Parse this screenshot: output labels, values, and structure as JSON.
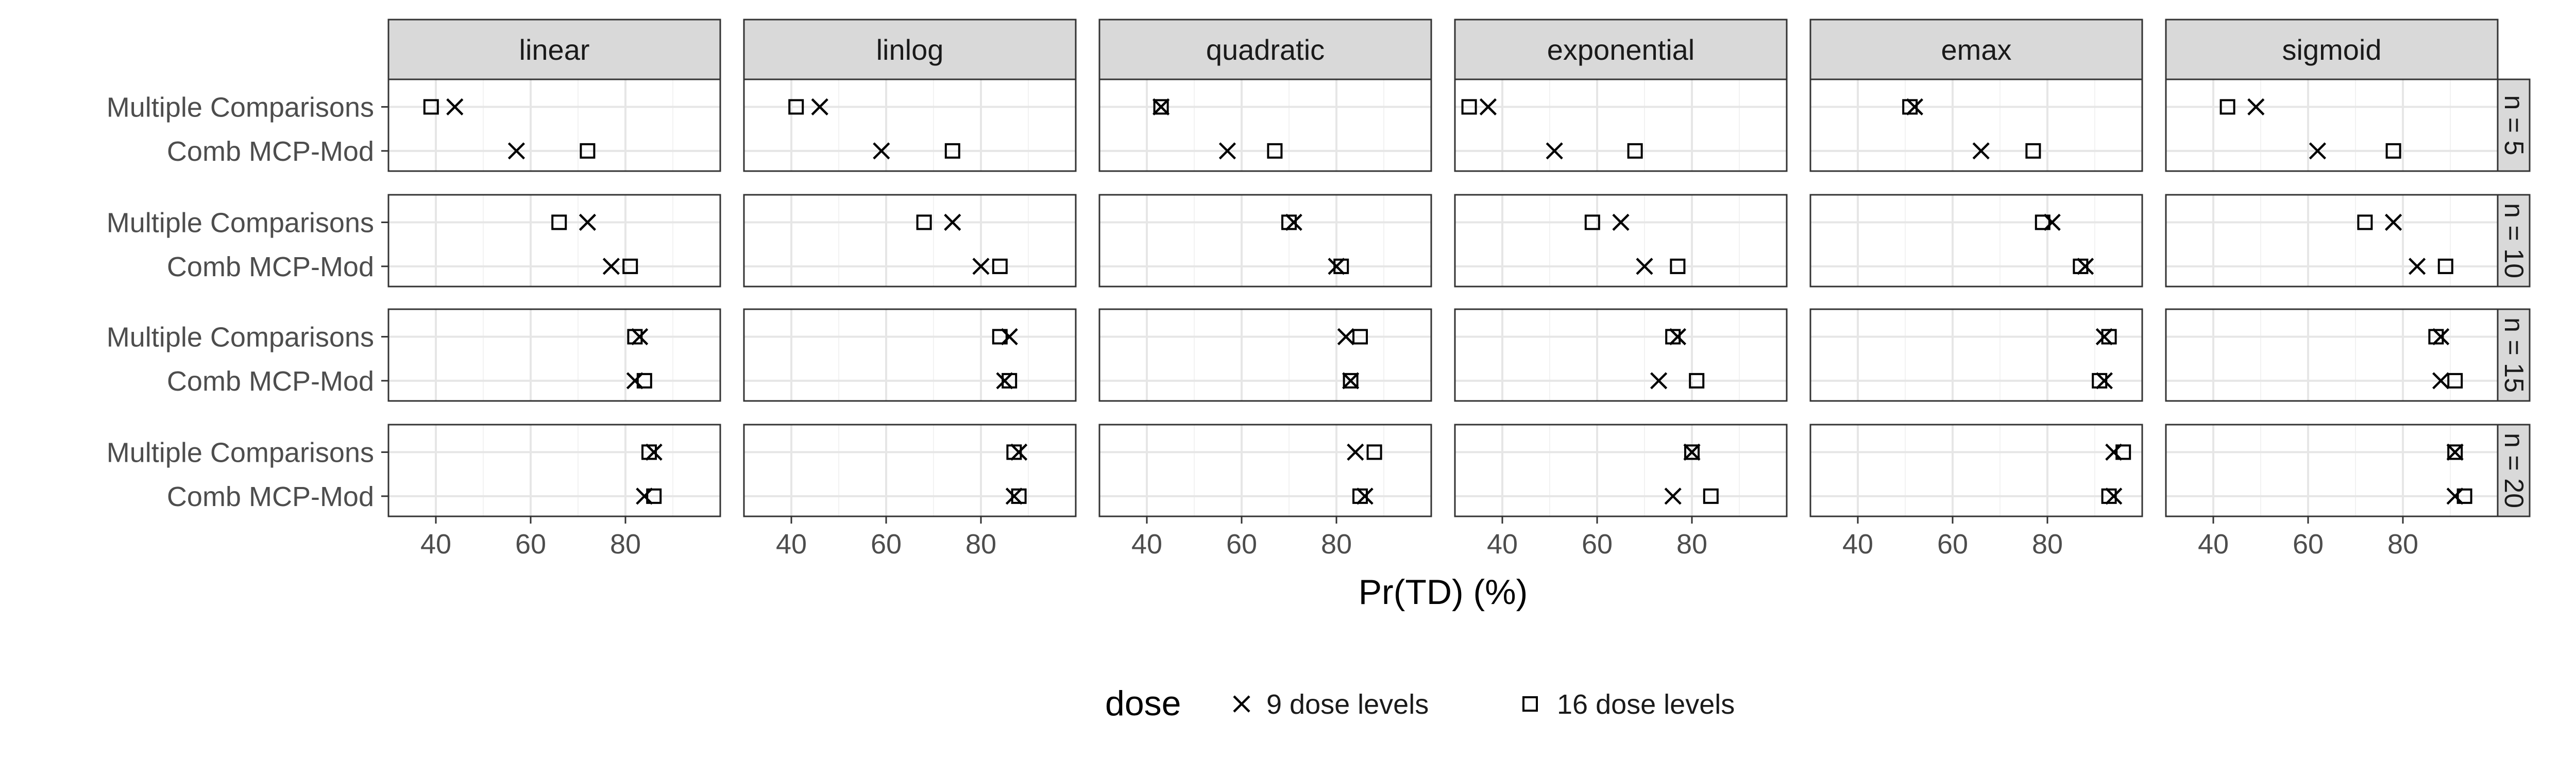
{
  "chart_data": {
    "type": "scatter",
    "xlabel": "Pr(TD) (%)",
    "ylabel": "",
    "xlim": [
      30,
      100
    ],
    "x_ticks": [
      "40",
      "60",
      "80"
    ],
    "x_tick_values": [
      40,
      60,
      80
    ],
    "grid": true,
    "legend_position": "bottom",
    "legend": {
      "title": "dose",
      "entries": [
        {
          "name": "9 dose levels",
          "shape": "cross"
        },
        {
          "name": "16 dose levels",
          "shape": "open-square"
        }
      ]
    },
    "facet_columns": [
      "linear",
      "linlog",
      "quadratic",
      "exponential",
      "emax",
      "sigmoid"
    ],
    "facet_rows": [
      "n = 5",
      "n = 10",
      "n = 15",
      "n = 20"
    ],
    "categories": [
      "Multiple Comparisons",
      "Comb MCP-Mod"
    ],
    "series": [
      {
        "name": "9 dose levels",
        "values": {
          "n = 5": {
            "linear": {
              "Multiple Comparisons": 44,
              "Comb MCP-Mod": 57
            },
            "linlog": {
              "Multiple Comparisons": 46,
              "Comb MCP-Mod": 59
            },
            "quadratic": {
              "Multiple Comparisons": 43,
              "Comb MCP-Mod": 57
            },
            "exponential": {
              "Multiple Comparisons": 37,
              "Comb MCP-Mod": 51
            },
            "emax": {
              "Multiple Comparisons": 52,
              "Comb MCP-Mod": 66
            },
            "sigmoid": {
              "Multiple Comparisons": 49,
              "Comb MCP-Mod": 62
            }
          },
          "n = 10": {
            "linear": {
              "Multiple Comparisons": 72,
              "Comb MCP-Mod": 77
            },
            "linlog": {
              "Multiple Comparisons": 74,
              "Comb MCP-Mod": 80
            },
            "quadratic": {
              "Multiple Comparisons": 71,
              "Comb MCP-Mod": 80
            },
            "exponential": {
              "Multiple Comparisons": 65,
              "Comb MCP-Mod": 70
            },
            "emax": {
              "Multiple Comparisons": 81,
              "Comb MCP-Mod": 88
            },
            "sigmoid": {
              "Multiple Comparisons": 78,
              "Comb MCP-Mod": 83
            }
          },
          "n = 15": {
            "linear": {
              "Multiple Comparisons": 83,
              "Comb MCP-Mod": 82
            },
            "linlog": {
              "Multiple Comparisons": 86,
              "Comb MCP-Mod": 85
            },
            "quadratic": {
              "Multiple Comparisons": 82,
              "Comb MCP-Mod": 83
            },
            "exponential": {
              "Multiple Comparisons": 77,
              "Comb MCP-Mod": 73
            },
            "emax": {
              "Multiple Comparisons": 92,
              "Comb MCP-Mod": 92
            },
            "sigmoid": {
              "Multiple Comparisons": 88,
              "Comb MCP-Mod": 88
            }
          },
          "n = 20": {
            "linear": {
              "Multiple Comparisons": 86,
              "Comb MCP-Mod": 84
            },
            "linlog": {
              "Multiple Comparisons": 88,
              "Comb MCP-Mod": 87
            },
            "quadratic": {
              "Multiple Comparisons": 84,
              "Comb MCP-Mod": 86
            },
            "exponential": {
              "Multiple Comparisons": 80,
              "Comb MCP-Mod": 76
            },
            "emax": {
              "Multiple Comparisons": 94,
              "Comb MCP-Mod": 94
            },
            "sigmoid": {
              "Multiple Comparisons": 91,
              "Comb MCP-Mod": 91
            }
          }
        }
      },
      {
        "name": "16 dose levels",
        "values": {
          "n = 5": {
            "linear": {
              "Multiple Comparisons": 39,
              "Comb MCP-Mod": 72
            },
            "linlog": {
              "Multiple Comparisons": 41,
              "Comb MCP-Mod": 74
            },
            "quadratic": {
              "Multiple Comparisons": 43,
              "Comb MCP-Mod": 67
            },
            "exponential": {
              "Multiple Comparisons": 33,
              "Comb MCP-Mod": 68
            },
            "emax": {
              "Multiple Comparisons": 51,
              "Comb MCP-Mod": 77
            },
            "sigmoid": {
              "Multiple Comparisons": 43,
              "Comb MCP-Mod": 78
            }
          },
          "n = 10": {
            "linear": {
              "Multiple Comparisons": 66,
              "Comb MCP-Mod": 81
            },
            "linlog": {
              "Multiple Comparisons": 68,
              "Comb MCP-Mod": 84
            },
            "quadratic": {
              "Multiple Comparisons": 70,
              "Comb MCP-Mod": 81
            },
            "exponential": {
              "Multiple Comparisons": 59,
              "Comb MCP-Mod": 77
            },
            "emax": {
              "Multiple Comparisons": 79,
              "Comb MCP-Mod": 87
            },
            "sigmoid": {
              "Multiple Comparisons": 72,
              "Comb MCP-Mod": 89
            }
          },
          "n = 15": {
            "linear": {
              "Multiple Comparisons": 82,
              "Comb MCP-Mod": 84
            },
            "linlog": {
              "Multiple Comparisons": 84,
              "Comb MCP-Mod": 86
            },
            "quadratic": {
              "Multiple Comparisons": 85,
              "Comb MCP-Mod": 83
            },
            "exponential": {
              "Multiple Comparisons": 76,
              "Comb MCP-Mod": 81
            },
            "emax": {
              "Multiple Comparisons": 93,
              "Comb MCP-Mod": 91
            },
            "sigmoid": {
              "Multiple Comparisons": 87,
              "Comb MCP-Mod": 91
            }
          },
          "n = 20": {
            "linear": {
              "Multiple Comparisons": 85,
              "Comb MCP-Mod": 86
            },
            "linlog": {
              "Multiple Comparisons": 87,
              "Comb MCP-Mod": 88
            },
            "quadratic": {
              "Multiple Comparisons": 88,
              "Comb MCP-Mod": 85
            },
            "exponential": {
              "Multiple Comparisons": 80,
              "Comb MCP-Mod": 84
            },
            "emax": {
              "Multiple Comparisons": 96,
              "Comb MCP-Mod": 93
            },
            "sigmoid": {
              "Multiple Comparisons": 91,
              "Comb MCP-Mod": 93
            }
          }
        }
      }
    ]
  }
}
